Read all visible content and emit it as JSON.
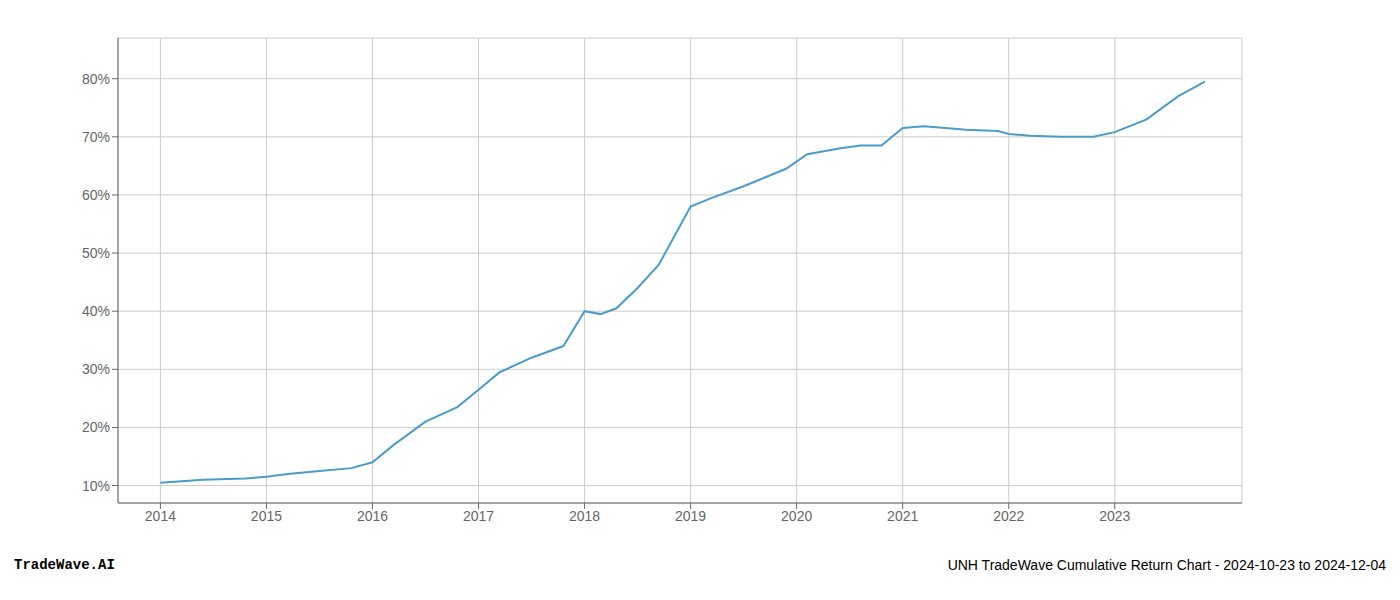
{
  "chart_data": {
    "type": "line",
    "x": [
      2014.0,
      2014.4,
      2014.8,
      2015.0,
      2015.2,
      2015.5,
      2015.8,
      2016.0,
      2016.2,
      2016.5,
      2016.8,
      2017.0,
      2017.2,
      2017.5,
      2017.8,
      2018.0,
      2018.15,
      2018.3,
      2018.5,
      2018.7,
      2019.0,
      2019.2,
      2019.5,
      2019.7,
      2019.9,
      2020.1,
      2020.4,
      2020.6,
      2020.8,
      2021.0,
      2021.2,
      2021.4,
      2021.6,
      2021.9,
      2022.0,
      2022.2,
      2022.5,
      2022.8,
      2023.0,
      2023.3,
      2023.6,
      2023.85
    ],
    "values": [
      10.5,
      11.0,
      11.2,
      11.5,
      12.0,
      12.5,
      13.0,
      14.0,
      17.0,
      21.0,
      23.5,
      26.5,
      29.5,
      32.0,
      34.0,
      40.0,
      39.5,
      40.5,
      44.0,
      48.0,
      58.0,
      59.5,
      61.5,
      63.0,
      64.5,
      67.0,
      68.0,
      68.5,
      68.5,
      71.5,
      71.8,
      71.5,
      71.2,
      71.0,
      70.5,
      70.2,
      70.0,
      70.0,
      70.8,
      73.0,
      77.0,
      79.5
    ],
    "color": "#4a9cc9",
    "xlim": [
      2013.6,
      2024.2
    ],
    "xticks": [
      2014,
      2015,
      2016,
      2017,
      2018,
      2019,
      2020,
      2021,
      2022,
      2023
    ],
    "ylim": [
      7,
      87
    ],
    "yticks": [
      {
        "value": 10,
        "label": "10%"
      },
      {
        "value": 20,
        "label": "20%"
      },
      {
        "value": 30,
        "label": "30%"
      },
      {
        "value": 40,
        "label": "40%"
      },
      {
        "value": 50,
        "label": "50%"
      },
      {
        "value": 60,
        "label": "60%"
      },
      {
        "value": 70,
        "label": "70%"
      },
      {
        "value": 80,
        "label": "80%"
      }
    ],
    "grid": true,
    "annotations": [
      "TradeWave.AI",
      "UNH TradeWave Cumulative Return Chart - 2024-10-23 to 2024-12-04"
    ]
  }
}
